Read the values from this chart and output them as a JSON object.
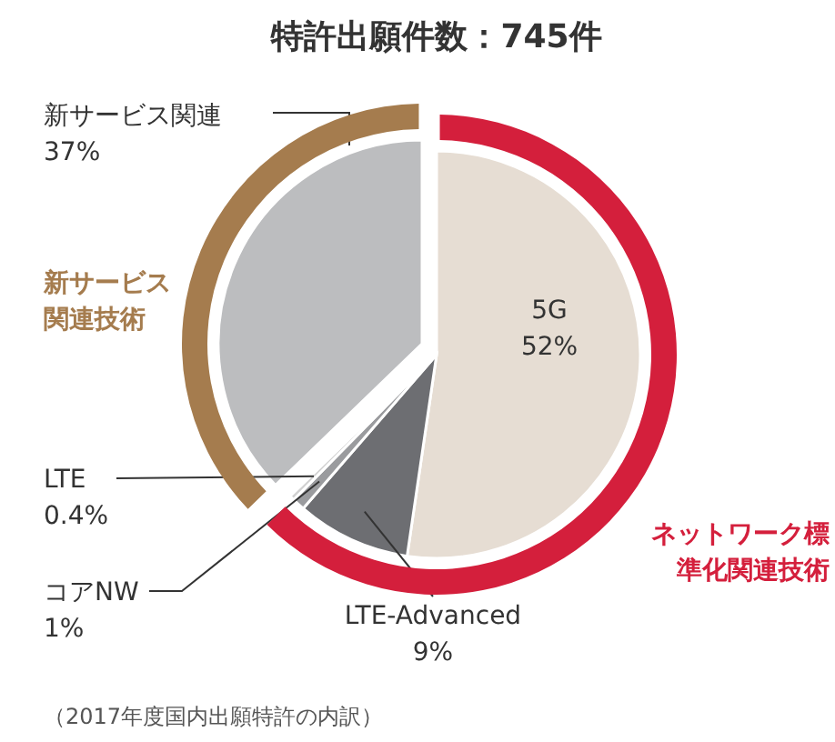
{
  "chart_data": [
    {
      "type": "pie",
      "title": "特許出願件数：745件",
      "categories": [
        "5G",
        "LTE-Advanced",
        "コアNW",
        "LTE",
        "新サービス関連"
      ],
      "values": [
        52,
        9,
        1,
        0.4,
        37
      ],
      "value_labels": [
        "52%",
        "9%",
        "1%",
        "0.4%",
        "37%"
      ],
      "colors": [
        "#e6ddd3",
        "#6d6e72",
        "#9a9b9e",
        "#d0d0d0",
        "#bcbdbf"
      ],
      "annotations": [
        "（2017年度国内出願特許の内訳）"
      ]
    },
    {
      "type": "donut",
      "categories": [
        "ネットワーク標準化関連技術",
        "新サービス関連技術"
      ],
      "values": [
        62.4,
        37
      ],
      "colors": [
        "#d41f3c",
        "#a57c4e"
      ]
    }
  ]
}
